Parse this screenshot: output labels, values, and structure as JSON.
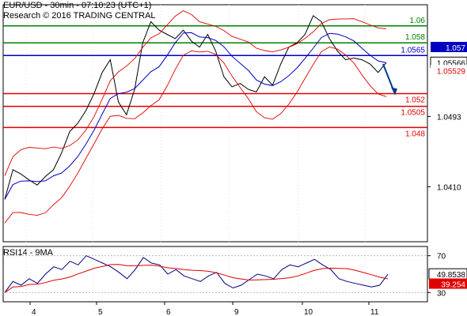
{
  "header": {
    "line1": "EUR/USD - 30min - 07:10:23 (UTC+1)",
    "line2": "Research © 2016 TRADING CENTRAL"
  },
  "colors": {
    "support": "#e00000",
    "resistance": "#008000",
    "pivot": "#0000c0",
    "price": "#000000",
    "bollinger": "#e00000",
    "ma": "#0000c0",
    "rsi": "#000080",
    "rsi_ma": "#e00000"
  },
  "chart_data": [
    {
      "type": "line",
      "x_labels": [
        "4",
        "5",
        "6",
        "9",
        "10",
        "11"
      ],
      "y_ticks": [
        "1.0493",
        "1.0410"
      ],
      "ylim": [
        1.0345,
        1.0625
      ],
      "levels": [
        {
          "label": "1.06",
          "value": 1.06,
          "kind": "resistance"
        },
        {
          "label": "1.058",
          "value": 1.058,
          "kind": "resistance"
        },
        {
          "label": "1.0565",
          "value": 1.0565,
          "kind": "pivot"
        },
        {
          "label": "1.052",
          "value": 1.052,
          "kind": "support"
        },
        {
          "label": "1.0505",
          "value": 1.0505,
          "kind": "support"
        },
        {
          "label": "1.048",
          "value": 1.048,
          "kind": "support"
        }
      ],
      "price_labels": [
        {
          "label": "1.057",
          "value": 1.0569
        },
        {
          "label": "1.05566",
          "value": 1.05566
        },
        {
          "label": "1.05529",
          "value": 1.05529
        }
      ],
      "price_series": [
        1.0395,
        1.043,
        1.0425,
        1.0418,
        1.0412,
        1.0422,
        1.043,
        1.045,
        1.0475,
        1.0485,
        1.05,
        1.052,
        1.0545,
        1.056,
        1.051,
        1.0495,
        1.0525,
        1.058,
        1.0605,
        1.0595,
        1.059,
        1.0585,
        1.0595,
        1.0582,
        1.0575,
        1.059,
        1.057,
        1.054,
        1.0528,
        1.0532,
        1.0525,
        1.0522,
        1.054,
        1.053,
        1.0555,
        1.0575,
        1.058,
        1.059,
        1.0612,
        1.0605,
        1.0585,
        1.057,
        1.056,
        1.0562,
        1.056,
        1.0555,
        1.0545,
        1.05566
      ],
      "forecast_arrow": {
        "from": 1.0555,
        "to": 1.0522
      }
    },
    {
      "type": "line",
      "title": "RSI14 - 9MA",
      "y_ticks": [
        "70",
        "30"
      ],
      "ylim": [
        20,
        80
      ],
      "value_labels": [
        {
          "label": "49.8538",
          "value": 49.8538,
          "series": "rsi"
        },
        {
          "label": "39.254",
          "value": 39.254,
          "series": "rsi_ma"
        }
      ],
      "rsi_series": [
        30,
        42,
        38,
        45,
        40,
        50,
        58,
        55,
        64,
        60,
        70,
        66,
        62,
        58,
        52,
        45,
        55,
        68,
        62,
        60,
        50,
        55,
        48,
        45,
        42,
        48,
        52,
        40,
        35,
        38,
        44,
        50,
        48,
        45,
        55,
        60,
        58,
        62,
        66,
        60,
        55,
        45,
        42,
        40,
        38,
        36,
        38,
        49.85
      ]
    }
  ]
}
